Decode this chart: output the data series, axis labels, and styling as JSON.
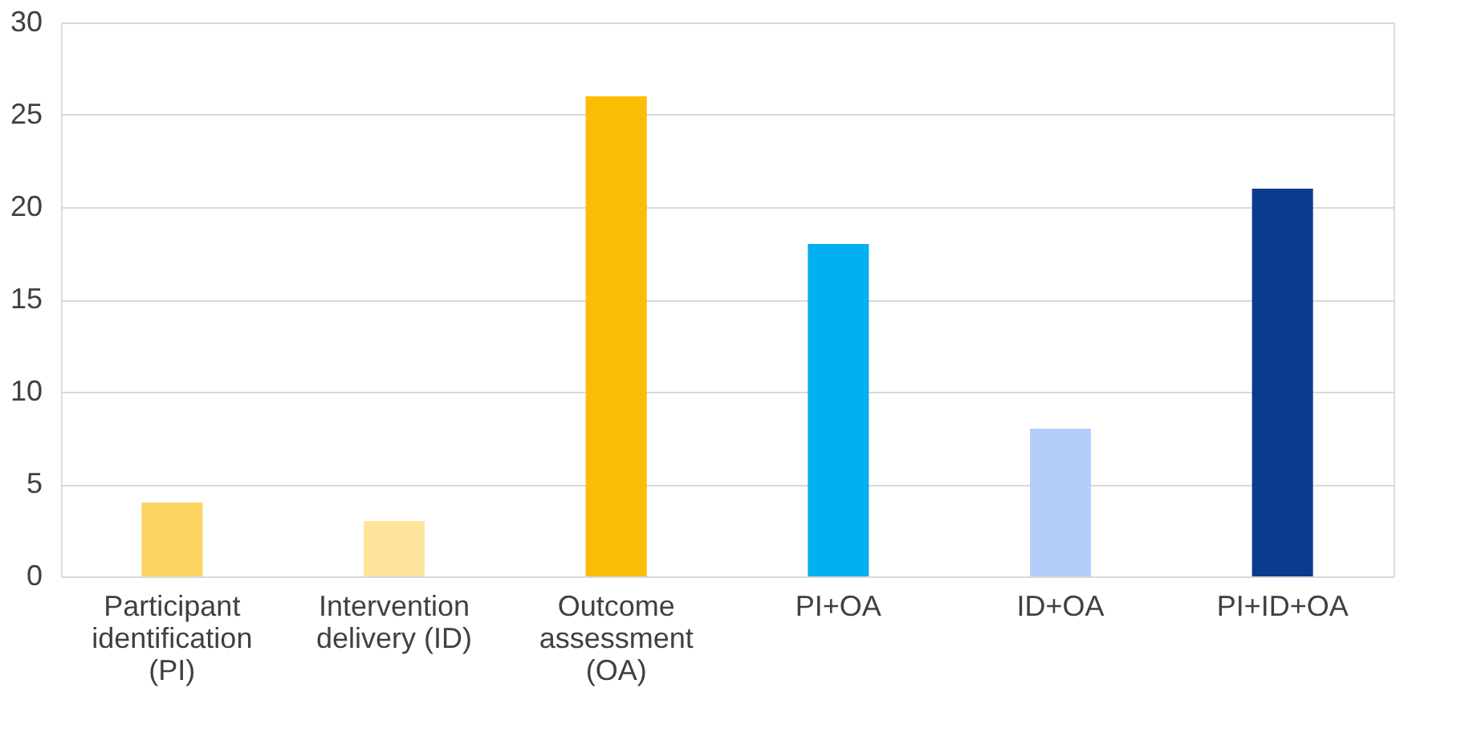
{
  "chart_data": {
    "type": "bar",
    "categories": [
      "Participant identification (PI)",
      "Intervention delivery (ID)",
      "Outcome assessment (OA)",
      "PI+OA",
      "ID+OA",
      "PI+ID+OA"
    ],
    "values": [
      4,
      3,
      26,
      18,
      8,
      21
    ],
    "colors": [
      "#fcd462",
      "#fde49a",
      "#fbbc04",
      "#00b0f0",
      "#b4cdfb",
      "#0b3a8f"
    ],
    "ylim": [
      0,
      30
    ],
    "yticks": [
      0,
      5,
      10,
      15,
      20,
      25,
      30
    ],
    "grid": "y",
    "legend": false
  }
}
